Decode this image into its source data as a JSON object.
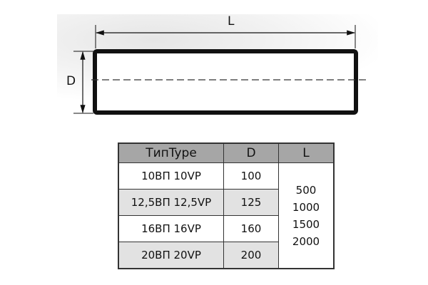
{
  "drawing": {
    "length_label": "L",
    "diameter_label": "D"
  },
  "table": {
    "headers": [
      "ТипType",
      "D",
      "L"
    ],
    "rows": [
      {
        "type": "10ВП 10VP",
        "d": "100"
      },
      {
        "type": "12,5ВП 12,5VP",
        "d": "125"
      },
      {
        "type": "16ВП 16VP",
        "d": "160"
      },
      {
        "type": "20ВП 20VP",
        "d": "200"
      }
    ],
    "lengths": [
      "500",
      "1000",
      "1500",
      "2000"
    ]
  }
}
